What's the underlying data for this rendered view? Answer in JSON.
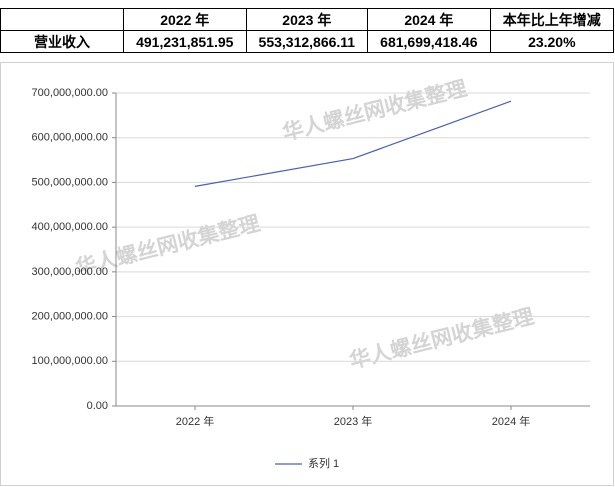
{
  "table": {
    "header": [
      "2022 年",
      "2023 年",
      "2024 年",
      "本年比上年增减"
    ],
    "rows": [
      [
        "营业收入",
        "491,231,851.95",
        "553,312,866.11",
        "681,699,418.46",
        "23.20%"
      ]
    ]
  },
  "watermark": "华人螺丝网收集整理",
  "chart_data": {
    "type": "line",
    "categories": [
      "2022 年",
      "2023 年",
      "2024 年"
    ],
    "series": [
      {
        "name": "系列 1",
        "color": "#4a5fb5",
        "values": [
          491231851.95,
          553312866.11,
          681699418.46
        ]
      }
    ],
    "ylim": [
      0,
      700000000
    ],
    "yticks": [
      {
        "value": 0,
        "label": "0.00"
      },
      {
        "value": 100000000,
        "label": "100,000,000.00"
      },
      {
        "value": 200000000,
        "label": "200,000,000.00"
      },
      {
        "value": 300000000,
        "label": "300,000,000.00"
      },
      {
        "value": 400000000,
        "label": "400,000,000.00"
      },
      {
        "value": 500000000,
        "label": "500,000,000.00"
      },
      {
        "value": 600000000,
        "label": "600,000,000.00"
      },
      {
        "value": 700000000,
        "label": "700,000,000.00"
      }
    ],
    "grid": true,
    "legend": "bottom"
  }
}
